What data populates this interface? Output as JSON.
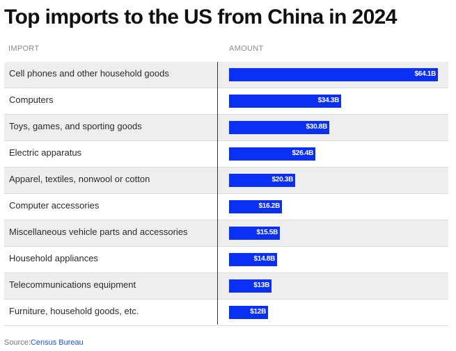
{
  "title": "Top imports to the US from China in 2024",
  "columns": {
    "import": "IMPORT",
    "amount": "AMOUNT"
  },
  "source": {
    "label": "Source:",
    "link": "Census Bureau"
  },
  "colors": {
    "bar": "#0a2ff5",
    "row_alt": "#eeeeee"
  },
  "chart_data": {
    "type": "bar",
    "orientation": "horizontal",
    "title": "Top imports to the US from China in 2024",
    "categories": [
      "Cell phones and other household goods",
      "Computers",
      "Toys, games, and sporting goods",
      "Electric apparatus",
      "Apparel, textiles, nonwool or cotton",
      "Computer accessories",
      "Miscellaneous vehicle parts and accessories",
      "Household appliances",
      "Telecommunications equipment",
      "Furniture, household goods, etc."
    ],
    "values": [
      64.1,
      34.3,
      30.8,
      26.4,
      20.3,
      16.2,
      15.5,
      14.8,
      13,
      12
    ],
    "value_labels": [
      "$64.1B",
      "$34.3B",
      "$30.8B",
      "$26.4B",
      "$20.3B",
      "$16.2B",
      "$15.5B",
      "$14.8B",
      "$13B",
      "$12B"
    ],
    "xlim": [
      0,
      64.1
    ],
    "grid": false,
    "legend": "none"
  }
}
